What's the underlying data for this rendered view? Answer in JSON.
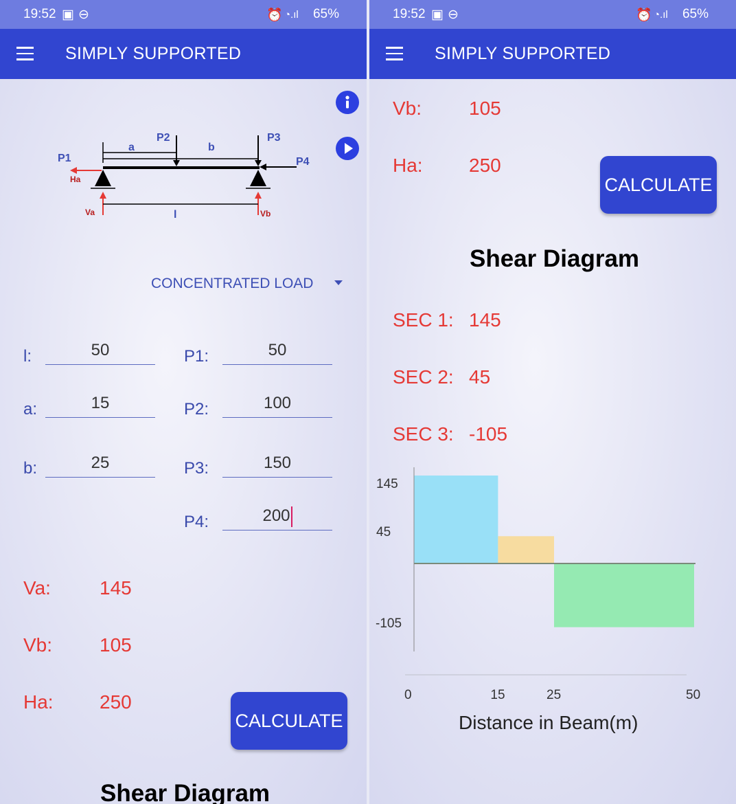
{
  "status": {
    "time": "19:52",
    "battery": "65%"
  },
  "app": {
    "title": "SIMPLY SUPPORTED"
  },
  "diagram": {
    "P1": "P1",
    "P2": "P2",
    "P3": "P3",
    "P4": "P4",
    "a": "a",
    "b": "b",
    "l": "l",
    "Ha": "Ha",
    "Va": "Va",
    "Vb": "Vb"
  },
  "load_type": {
    "selected": "CONCENTRATED LOAD"
  },
  "inputs": {
    "l": {
      "label": "l:",
      "value": "50"
    },
    "a": {
      "label": "a:",
      "value": "15"
    },
    "b": {
      "label": "b:",
      "value": "25"
    },
    "P1": {
      "label": "P1:",
      "value": "50"
    },
    "P2": {
      "label": "P2:",
      "value": "100"
    },
    "P3": {
      "label": "P3:",
      "value": "150"
    },
    "P4": {
      "label": "P4:",
      "value": "200"
    }
  },
  "results": {
    "Va": {
      "label": "Va:",
      "value": "145"
    },
    "Vb": {
      "label": "Vb:",
      "value": "105"
    },
    "Ha": {
      "label": "Ha:",
      "value": "250"
    }
  },
  "calculate_label": "CALCULATE",
  "shear_title": "Shear Diagram",
  "sections": [
    {
      "label": "SEC 1:",
      "value": "145"
    },
    {
      "label": "SEC 2:",
      "value": "45"
    },
    {
      "label": "SEC 3:",
      "value": "-105"
    }
  ],
  "chart_data": {
    "type": "area",
    "xlabel": "Distance in Beam(m)",
    "ylabel": "",
    "x_ticks": [
      0,
      15,
      25,
      50
    ],
    "y_ticks": [
      145,
      45,
      -105
    ],
    "xlim": [
      0,
      50
    ],
    "ylim": [
      -105,
      145
    ],
    "series": [
      {
        "x_start": 0,
        "x_end": 15,
        "value": 145,
        "color": "#99e0f7"
      },
      {
        "x_start": 15,
        "x_end": 25,
        "value": 45,
        "color": "#f7dca0"
      },
      {
        "x_start": 25,
        "x_end": 50,
        "value": -105,
        "color": "#95eab2"
      }
    ]
  },
  "colors": {
    "primary": "#3145d0",
    "status": "#6e7ce0",
    "result": "#e53935",
    "label": "#3949ab"
  }
}
